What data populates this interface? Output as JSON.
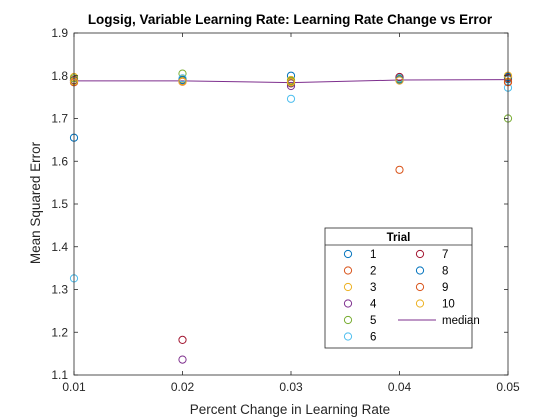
{
  "chart_data": {
    "type": "scatter",
    "title": "Logsig, Variable Learning Rate: Learning Rate Change vs Error",
    "xlabel": "Percent Change in Learning Rate",
    "ylabel": "Mean Squared Error",
    "xlim": [
      0.01,
      0.05
    ],
    "ylim": [
      1.1,
      1.9
    ],
    "xticks": [
      "0.01",
      "0.02",
      "0.03",
      "0.04",
      "0.05"
    ],
    "yticks": [
      "1.1",
      "1.2",
      "1.3",
      "1.4",
      "1.5",
      "1.6",
      "1.7",
      "1.8",
      "1.9"
    ],
    "x": [
      0.01,
      0.02,
      0.03,
      0.04,
      0.05
    ],
    "grid": false,
    "legend": {
      "title": "Trial",
      "placement": "lower-right",
      "columns": 2
    },
    "series": [
      {
        "name": "1",
        "color": "#0072BD",
        "values": [
          1.655,
          1.79,
          1.8,
          1.796,
          1.792
        ]
      },
      {
        "name": "2",
        "color": "#D95319",
        "values": [
          1.79,
          1.788,
          1.786,
          1.792,
          1.786
        ]
      },
      {
        "name": "3",
        "color": "#EDB120",
        "values": [
          1.797,
          1.792,
          1.79,
          1.79,
          1.794
        ]
      },
      {
        "name": "4",
        "color": "#7E2F8E",
        "values": [
          1.785,
          1.136,
          1.776,
          1.789,
          1.798
        ]
      },
      {
        "name": "5",
        "color": "#77AC30",
        "values": [
          1.794,
          1.805,
          1.788,
          1.793,
          1.7
        ]
      },
      {
        "name": "6",
        "color": "#4DBEEE",
        "values": [
          1.326,
          1.794,
          1.746,
          1.795,
          1.772
        ]
      },
      {
        "name": "7",
        "color": "#A2142F",
        "values": [
          1.789,
          1.182,
          1.782,
          1.797,
          1.795
        ]
      },
      {
        "name": "8",
        "color": "#0072BD",
        "values": [
          1.788,
          1.79,
          1.783,
          1.791,
          1.797
        ]
      },
      {
        "name": "9",
        "color": "#D95319",
        "values": [
          1.785,
          1.786,
          1.784,
          1.58,
          1.785
        ]
      },
      {
        "name": "10",
        "color": "#EDB120",
        "values": [
          1.787,
          1.787,
          1.785,
          1.789,
          1.8
        ]
      }
    ],
    "median": {
      "name": "median",
      "color": "#7E2F8E",
      "values": [
        1.788,
        1.788,
        1.784,
        1.79,
        1.791
      ]
    }
  }
}
